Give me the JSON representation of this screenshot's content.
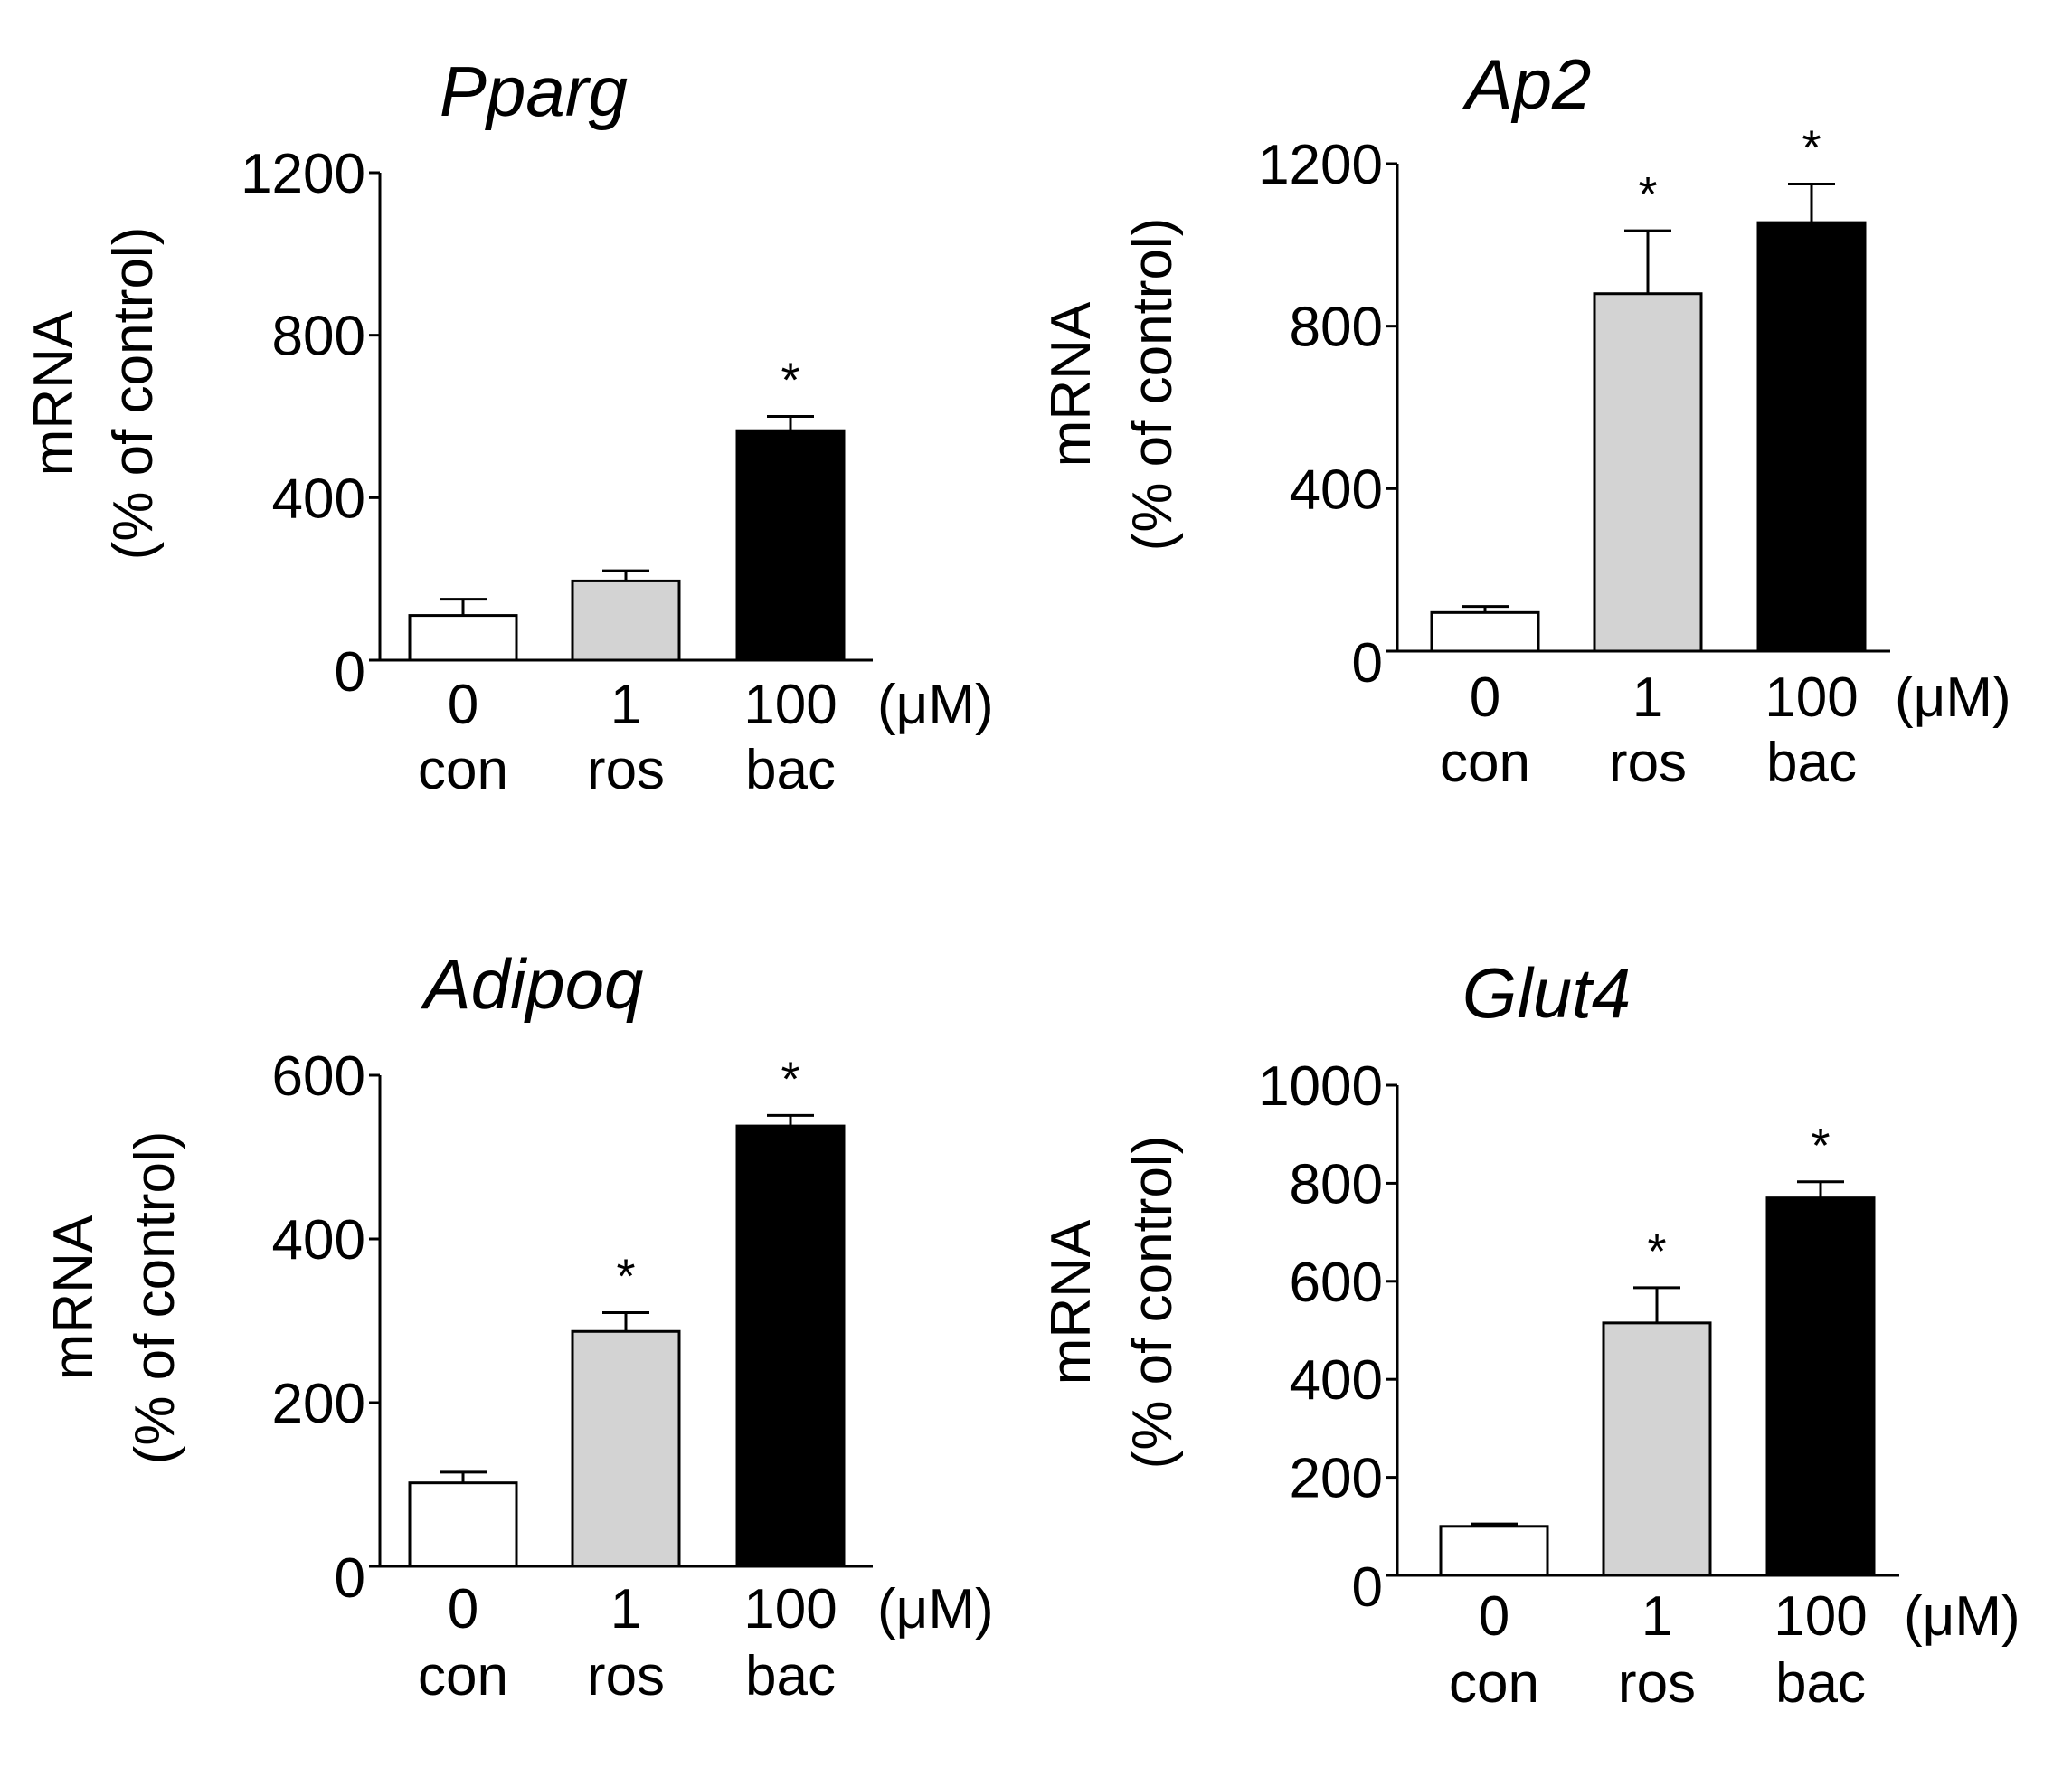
{
  "colors": {
    "con": "#ffffff",
    "ros": "#d3d3d3",
    "bac": "#000000",
    "axis": "#000000"
  },
  "chart_data": [
    {
      "type": "bar",
      "title": "Pparg",
      "ylabel_line1": "mRNA",
      "ylabel_line2": "(% of control)",
      "ylim": [
        0,
        1200
      ],
      "yticks": [
        "0",
        "400",
        "800",
        "1200"
      ],
      "categories": [
        {
          "dose": "0",
          "name": "con"
        },
        {
          "dose": "1",
          "name": "ros"
        },
        {
          "dose": "100",
          "name": "bac"
        }
      ],
      "unit": "(μM)",
      "values": [
        110,
        195,
        565
      ],
      "errors": [
        40,
        25,
        35
      ],
      "significance": [
        "",
        "",
        "*"
      ]
    },
    {
      "type": "bar",
      "title": "Ap2",
      "ylabel_line1": "mRNA",
      "ylabel_line2": "(% of control)",
      "ylim": [
        0,
        1200
      ],
      "yticks": [
        "0",
        "400",
        "800",
        "1200"
      ],
      "categories": [
        {
          "dose": "0",
          "name": "con"
        },
        {
          "dose": "1",
          "name": "ros"
        },
        {
          "dose": "100",
          "name": "bac"
        }
      ],
      "unit": "(μM)",
      "values": [
        95,
        880,
        1055
      ],
      "errors": [
        15,
        155,
        95
      ],
      "significance": [
        "",
        "*",
        "*"
      ]
    },
    {
      "type": "bar",
      "title": "Adipoq",
      "ylabel_line1": "mRNA",
      "ylabel_line2": "(% of control)",
      "ylim": [
        0,
        600
      ],
      "yticks": [
        "0",
        "200",
        "400",
        "600"
      ],
      "categories": [
        {
          "dose": "0",
          "name": "con"
        },
        {
          "dose": "1",
          "name": "ros"
        },
        {
          "dose": "100",
          "name": "bac"
        }
      ],
      "unit": "(μM)",
      "values": [
        102,
        287,
        538
      ],
      "errors": [
        13,
        23,
        13
      ],
      "significance": [
        "",
        "*",
        "*"
      ]
    },
    {
      "type": "bar",
      "title": "Glut4",
      "ylabel_line1": "mRNA",
      "ylabel_line2": "(% of control)",
      "ylim": [
        0,
        1000
      ],
      "yticks": [
        "0",
        "200",
        "400",
        "600",
        "800",
        "1000"
      ],
      "categories": [
        {
          "dose": "0",
          "name": "con"
        },
        {
          "dose": "1",
          "name": "ros"
        },
        {
          "dose": "100",
          "name": "bac"
        }
      ],
      "unit": "(μM)",
      "values": [
        100,
        515,
        770
      ],
      "errors": [
        5,
        72,
        33
      ],
      "significance": [
        "",
        "*",
        "*"
      ]
    }
  ]
}
